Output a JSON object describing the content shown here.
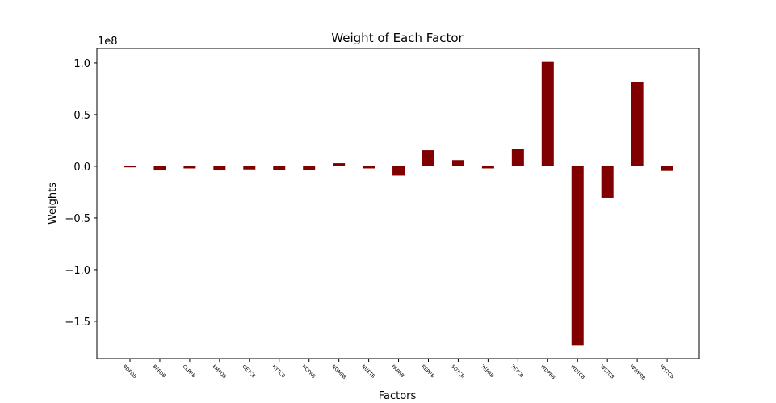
{
  "chart_data": {
    "type": "bar",
    "title": "Weight of Each Factor",
    "xlabel": "Factors",
    "ylabel": "Weights",
    "scale_label": "1e8",
    "categories": [
      "BDFDB",
      "BFFDB",
      "CLPRB",
      "EMFDB",
      "GETCB",
      "HYTCB",
      "NCPRB",
      "NGMPB",
      "NUETB",
      "PAPRB",
      "REPRB",
      "SOTCB",
      "TEPRB",
      "TETCB",
      "WDPRB",
      "WDTCB",
      "WSTCB",
      "WWPRB",
      "WYTCB"
    ],
    "values": [
      -0.01,
      -0.04,
      -0.02,
      -0.04,
      -0.03,
      -0.035,
      -0.035,
      0.03,
      -0.02,
      -0.09,
      0.155,
      0.06,
      -0.02,
      0.17,
      1.01,
      -1.73,
      -0.305,
      0.815,
      -0.045
    ],
    "ylim": [
      -1.86,
      1.14
    ],
    "yticks": [
      1.0,
      0.5,
      0.0,
      -0.5,
      -1.0,
      -1.5
    ],
    "ytick_labels": [
      "1.0",
      "0.5",
      "0.0",
      "−0.5",
      "−1.0",
      "−1.5"
    ],
    "bar_color": "#800000",
    "grid": false
  }
}
